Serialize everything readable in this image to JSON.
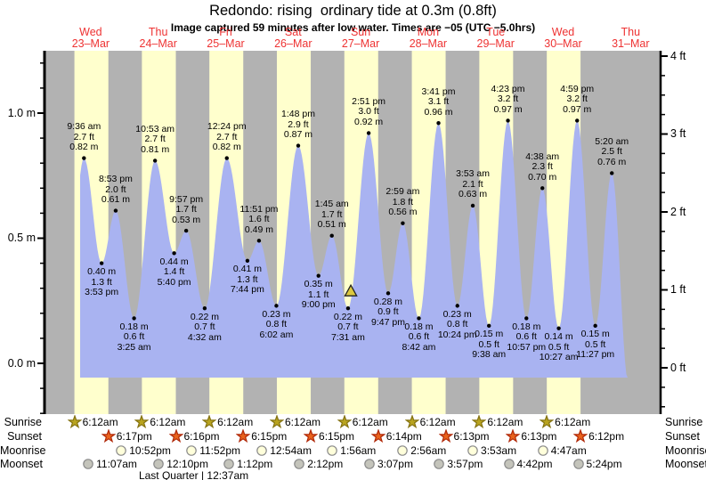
{
  "title": "Redondo: rising  ordinary tide at 0.3m (0.8ft)",
  "subtitle": "Image captured 59 minutes after low water. Times are −05 (UTC −5.0hrs)",
  "colors": {
    "night_band": "#b2b2b2",
    "day_band": "#ffffcd",
    "tide_fill": "#a9b3f1",
    "day_label_red": "#ee3333",
    "sunrise_star": "#b9a41f",
    "sunset_star": "#e9631d",
    "moonrise_circle": "#ffffdb",
    "moonset_circle": "#c4c4bb",
    "current_triangle": "#dcc83e"
  },
  "chart_data": {
    "type": "area",
    "title": "Redondo: rising  ordinary tide at 0.3m (0.8ft)",
    "subtitle": "Image captured 59 minutes after low water. Times are −05 (UTC −5.0hrs)",
    "legend": "none",
    "grid": false,
    "ylim_m": [
      -0.2,
      1.25
    ],
    "days": [
      {
        "dow": "Wed",
        "date": "23–Mar"
      },
      {
        "dow": "Thu",
        "date": "24–Mar"
      },
      {
        "dow": "Fri",
        "date": "25–Mar"
      },
      {
        "dow": "Sat",
        "date": "26–Mar"
      },
      {
        "dow": "Sun",
        "date": "27–Mar"
      },
      {
        "dow": "Mon",
        "date": "28–Mar"
      },
      {
        "dow": "Tue",
        "date": "29–Mar"
      },
      {
        "dow": "Wed",
        "date": "30–Mar"
      },
      {
        "dow": "Thu",
        "date": "31–Mar"
      }
    ],
    "y_axis_left_ticks": [
      {
        "label": "1.0 m",
        "value": 1.0
      },
      {
        "label": "0.5 m",
        "value": 0.5
      },
      {
        "label": "0.0 m",
        "value": 0.0
      }
    ],
    "y_axis_right_ticks": [
      {
        "label": "4 ft",
        "value": 4
      },
      {
        "label": "3 ft",
        "value": 3
      },
      {
        "label": "2 ft",
        "value": 2
      },
      {
        "label": "1 ft",
        "value": 1
      },
      {
        "label": "0 ft",
        "value": 0
      }
    ],
    "events": [
      {
        "kind": "high",
        "day": 0,
        "hour": 9.6,
        "time": "9:36 am",
        "ft": "2.7 ft",
        "m": "0.82 m",
        "value_m": 0.82
      },
      {
        "kind": "low",
        "day": 0,
        "hour": 15.88,
        "time": "3:53 pm",
        "ft": "1.3 ft",
        "m": "0.40 m",
        "value_m": 0.4
      },
      {
        "kind": "high",
        "day": 0,
        "hour": 20.88,
        "time": "8:53 pm",
        "ft": "2.0 ft",
        "m": "0.61 m",
        "value_m": 0.61
      },
      {
        "kind": "low",
        "day": 1,
        "hour": 3.42,
        "time": "3:25 am",
        "ft": "0.6 ft",
        "m": "0.18 m",
        "value_m": 0.18
      },
      {
        "kind": "high",
        "day": 1,
        "hour": 10.88,
        "time": "10:53 am",
        "ft": "2.7 ft",
        "m": "0.81 m",
        "value_m": 0.81
      },
      {
        "kind": "low",
        "day": 1,
        "hour": 17.67,
        "time": "5:40 pm",
        "ft": "1.4 ft",
        "m": "0.44 m",
        "value_m": 0.44
      },
      {
        "kind": "high",
        "day": 1,
        "hour": 21.95,
        "time": "9:57 pm",
        "ft": "1.7 ft",
        "m": "0.53 m",
        "value_m": 0.53
      },
      {
        "kind": "low",
        "day": 2,
        "hour": 4.53,
        "time": "4:32 am",
        "ft": "0.7 ft",
        "m": "0.22 m",
        "value_m": 0.22
      },
      {
        "kind": "high",
        "day": 2,
        "hour": 12.4,
        "time": "12:24 pm",
        "ft": "2.7 ft",
        "m": "0.82 m",
        "value_m": 0.82
      },
      {
        "kind": "low",
        "day": 2,
        "hour": 19.73,
        "time": "7:44 pm",
        "ft": "1.3 ft",
        "m": "0.41 m",
        "value_m": 0.41
      },
      {
        "kind": "high",
        "day": 2,
        "hour": 23.85,
        "time": "11:51 pm",
        "ft": "1.6 ft",
        "m": "0.49 m",
        "value_m": 0.49
      },
      {
        "kind": "low",
        "day": 3,
        "hour": 6.03,
        "time": "6:02 am",
        "ft": "0.8 ft",
        "m": "0.23 m",
        "value_m": 0.23
      },
      {
        "kind": "high",
        "day": 3,
        "hour": 13.8,
        "time": "1:48 pm",
        "ft": "2.9 ft",
        "m": "0.87 m",
        "value_m": 0.87
      },
      {
        "kind": "low",
        "day": 3,
        "hour": 21.0,
        "time": "9:00 pm",
        "ft": "1.1 ft",
        "m": "0.35 m",
        "value_m": 0.35
      },
      {
        "kind": "high",
        "day": 4,
        "hour": 1.75,
        "time": "1:45 am",
        "ft": "1.7 ft",
        "m": "0.51 m",
        "value_m": 0.51
      },
      {
        "kind": "low",
        "day": 4,
        "hour": 7.52,
        "time": "7:31 am",
        "ft": "0.7 ft",
        "m": "0.22 m",
        "value_m": 0.22
      },
      {
        "kind": "high",
        "day": 4,
        "hour": 14.85,
        "time": "2:51 pm",
        "ft": "3.0 ft",
        "m": "0.92 m",
        "value_m": 0.92
      },
      {
        "kind": "low",
        "day": 4,
        "hour": 21.78,
        "time": "9:47 pm",
        "ft": "0.9 ft",
        "m": "0.28 m",
        "value_m": 0.28
      },
      {
        "kind": "high",
        "day": 5,
        "hour": 2.98,
        "time": "2:59 am",
        "ft": "1.8 ft",
        "m": "0.56 m",
        "value_m": 0.56
      },
      {
        "kind": "low",
        "day": 5,
        "hour": 8.7,
        "time": "8:42 am",
        "ft": "0.6 ft",
        "m": "0.18 m",
        "value_m": 0.18
      },
      {
        "kind": "high",
        "day": 5,
        "hour": 15.68,
        "time": "3:41 pm",
        "ft": "3.1 ft",
        "m": "0.96 m",
        "value_m": 0.96
      },
      {
        "kind": "low",
        "day": 5,
        "hour": 22.4,
        "time": "10:24 pm",
        "ft": "0.8 ft",
        "m": "0.23 m",
        "value_m": 0.23
      },
      {
        "kind": "high",
        "day": 6,
        "hour": 3.88,
        "time": "3:53 am",
        "ft": "2.1 ft",
        "m": "0.63 m",
        "value_m": 0.63
      },
      {
        "kind": "low",
        "day": 6,
        "hour": 9.63,
        "time": "9:38 am",
        "ft": "0.5 ft",
        "m": "0.15 m",
        "value_m": 0.15
      },
      {
        "kind": "high",
        "day": 6,
        "hour": 16.38,
        "time": "4:23 pm",
        "ft": "3.2 ft",
        "m": "0.97 m",
        "value_m": 0.97
      },
      {
        "kind": "low",
        "day": 6,
        "hour": 22.95,
        "time": "10:57 pm",
        "ft": "0.6 ft",
        "m": "0.18 m",
        "value_m": 0.18
      },
      {
        "kind": "high",
        "day": 7,
        "hour": 4.63,
        "time": "4:38 am",
        "ft": "2.3 ft",
        "m": "0.70 m",
        "value_m": 0.7
      },
      {
        "kind": "low",
        "day": 7,
        "hour": 10.45,
        "time": "10:27 am",
        "ft": "0.5 ft",
        "m": "0.14 m",
        "value_m": 0.14
      },
      {
        "kind": "high",
        "day": 7,
        "hour": 16.98,
        "time": "4:59 pm",
        "ft": "3.2 ft",
        "m": "0.97 m",
        "value_m": 0.97
      },
      {
        "kind": "low",
        "day": 7,
        "hour": 23.45,
        "time": "11:27 pm",
        "ft": "0.5 ft",
        "m": "0.15 m",
        "value_m": 0.15
      },
      {
        "kind": "high",
        "day": 8,
        "hour": 5.33,
        "time": "5:20 am",
        "ft": "2.5 ft",
        "m": "0.76 m",
        "value_m": 0.76
      }
    ],
    "current_marker": {
      "day": 4,
      "hour": 8.5,
      "value_m": 0.3
    }
  },
  "astro": {
    "row_labels": [
      "Sunrise",
      "Sunset",
      "Moonrise",
      "Moonset"
    ],
    "sunrise": [
      {
        "day": 0,
        "hour": 6.2,
        "time": "6:12am"
      },
      {
        "day": 1,
        "hour": 6.2,
        "time": "6:12am"
      },
      {
        "day": 2,
        "hour": 6.2,
        "time": "6:12am"
      },
      {
        "day": 3,
        "hour": 6.2,
        "time": "6:12am"
      },
      {
        "day": 4,
        "hour": 6.2,
        "time": "6:12am"
      },
      {
        "day": 5,
        "hour": 6.2,
        "time": "6:12am"
      },
      {
        "day": 6,
        "hour": 6.2,
        "time": "6:12am"
      },
      {
        "day": 7,
        "hour": 6.2,
        "time": "6:12am"
      }
    ],
    "sunset": [
      {
        "day": 0,
        "hour": 18.28,
        "time": "6:17pm"
      },
      {
        "day": 1,
        "hour": 18.27,
        "time": "6:16pm"
      },
      {
        "day": 2,
        "hour": 18.25,
        "time": "6:15pm"
      },
      {
        "day": 3,
        "hour": 18.25,
        "time": "6:15pm"
      },
      {
        "day": 4,
        "hour": 18.23,
        "time": "6:14pm"
      },
      {
        "day": 5,
        "hour": 18.22,
        "time": "6:13pm"
      },
      {
        "day": 6,
        "hour": 18.22,
        "time": "6:13pm"
      },
      {
        "day": 7,
        "hour": 18.2,
        "time": "6:12pm"
      }
    ],
    "moonrise": [
      {
        "day": 0,
        "hour": 22.87,
        "time": "10:52pm"
      },
      {
        "day": 1,
        "hour": 23.87,
        "time": "11:52pm"
      },
      {
        "day": 3,
        "hour": 0.9,
        "time": "12:54am"
      },
      {
        "day": 4,
        "hour": 1.93,
        "time": "1:56am"
      },
      {
        "day": 5,
        "hour": 2.93,
        "time": "2:56am"
      },
      {
        "day": 6,
        "hour": 3.88,
        "time": "3:53am"
      },
      {
        "day": 7,
        "hour": 4.78,
        "time": "4:47am"
      }
    ],
    "moonset": [
      {
        "day": 0,
        "hour": 11.12,
        "time": "11:07am"
      },
      {
        "day": 1,
        "hour": 12.17,
        "time": "12:10pm"
      },
      {
        "day": 2,
        "hour": 13.2,
        "time": "1:12pm"
      },
      {
        "day": 3,
        "hour": 14.2,
        "time": "2:12pm"
      },
      {
        "day": 4,
        "hour": 15.12,
        "time": "3:07pm"
      },
      {
        "day": 5,
        "hour": 15.95,
        "time": "3:57pm"
      },
      {
        "day": 6,
        "hour": 16.7,
        "time": "4:42pm"
      },
      {
        "day": 7,
        "hour": 17.4,
        "time": "5:24pm"
      }
    ],
    "moon_phase": {
      "text": "Last Quarter | 12:37am",
      "day": 2,
      "hour": 0.62
    }
  }
}
